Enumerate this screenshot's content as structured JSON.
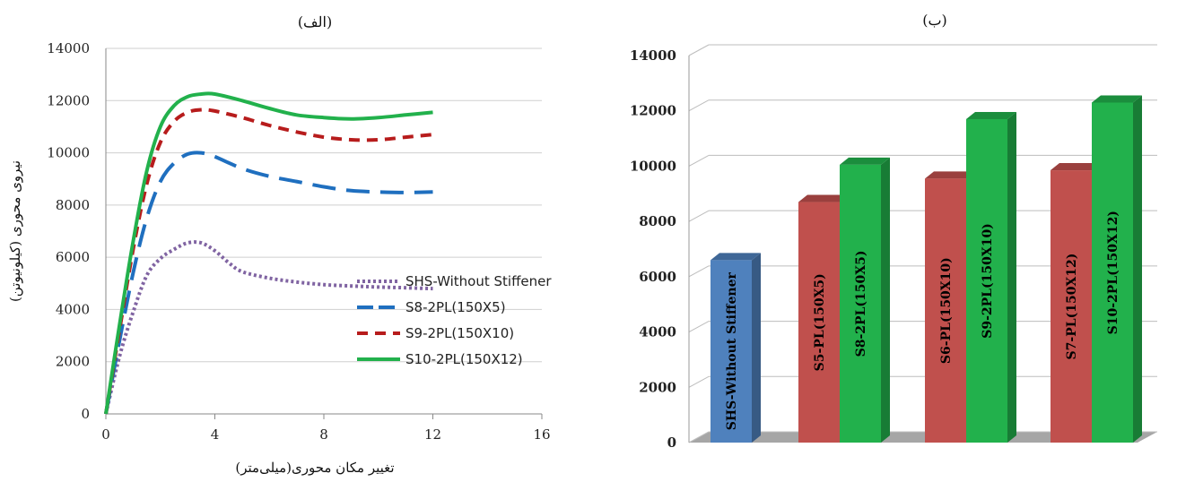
{
  "chart_data": [
    {
      "type": "line",
      "title": "(الف)",
      "xlabel": "تغییر مکان محوری(میلی‌متر)",
      "ylabel": "نیروی محوری (کیلونیوتن)",
      "xlim": [
        0,
        16
      ],
      "ylim": [
        0,
        14000
      ],
      "xticks": [
        "0",
        "4",
        "8",
        "12",
        "16"
      ],
      "yticks": [
        "0",
        "2000",
        "4000",
        "6000",
        "8000",
        "10000",
        "12000",
        "14000"
      ],
      "grid": "horizontal",
      "legend": "right",
      "series": [
        {
          "name": "SHS-Without Stiffener",
          "color": "#8064a2",
          "style": "dotted-thick",
          "points": [
            [
              0,
              0
            ],
            [
              0.5,
              2200
            ],
            [
              1,
              3900
            ],
            [
              1.5,
              5300
            ],
            [
              2,
              5950
            ],
            [
              2.5,
              6300
            ],
            [
              3,
              6550
            ],
            [
              3.5,
              6550
            ],
            [
              4,
              6250
            ],
            [
              4.5,
              5800
            ],
            [
              5,
              5450
            ],
            [
              6,
              5200
            ],
            [
              7,
              5050
            ],
            [
              8,
              4950
            ],
            [
              9,
              4900
            ],
            [
              10,
              4860
            ],
            [
              11,
              4830
            ],
            [
              12,
              4800
            ]
          ]
        },
        {
          "name": "S8-2PL(150X5)",
          "color": "#1f6fbf",
          "style": "long-dash",
          "points": [
            [
              0,
              0
            ],
            [
              0.5,
              2800
            ],
            [
              1,
              5400
            ],
            [
              1.5,
              7500
            ],
            [
              2,
              8900
            ],
            [
              2.5,
              9600
            ],
            [
              3,
              9950
            ],
            [
              3.5,
              10000
            ],
            [
              4,
              9850
            ],
            [
              5,
              9400
            ],
            [
              6,
              9100
            ],
            [
              7,
              8900
            ],
            [
              8,
              8700
            ],
            [
              9,
              8550
            ],
            [
              10,
              8500
            ],
            [
              11,
              8480
            ],
            [
              12,
              8500
            ]
          ]
        },
        {
          "name": "S9-2PL(150X10)",
          "color": "#b71c1c",
          "style": "dash",
          "points": [
            [
              0,
              0
            ],
            [
              0.5,
              3200
            ],
            [
              1,
              6300
            ],
            [
              1.5,
              8800
            ],
            [
              2,
              10400
            ],
            [
              2.5,
              11200
            ],
            [
              3,
              11550
            ],
            [
              3.5,
              11650
            ],
            [
              4,
              11600
            ],
            [
              5,
              11350
            ],
            [
              6,
              11050
            ],
            [
              7,
              10800
            ],
            [
              8,
              10600
            ],
            [
              9,
              10500
            ],
            [
              10,
              10500
            ],
            [
              11,
              10600
            ],
            [
              12,
              10700
            ]
          ]
        },
        {
          "name": "S10-2PL(150X12)",
          "color": "#22b14c",
          "style": "solid",
          "points": [
            [
              0,
              0
            ],
            [
              0.5,
              3400
            ],
            [
              1,
              6600
            ],
            [
              1.5,
              9300
            ],
            [
              2,
              11000
            ],
            [
              2.5,
              11800
            ],
            [
              3,
              12150
            ],
            [
              3.5,
              12250
            ],
            [
              4,
              12250
            ],
            [
              5,
              12000
            ],
            [
              6,
              11700
            ],
            [
              7,
              11450
            ],
            [
              8,
              11350
            ],
            [
              9,
              11300
            ],
            [
              10,
              11350
            ],
            [
              11,
              11450
            ],
            [
              12,
              11550
            ]
          ]
        }
      ]
    },
    {
      "type": "bar",
      "title": "(ب)",
      "ylim": [
        0,
        14000
      ],
      "yticks": [
        "0",
        "2000",
        "4000",
        "6000",
        "8000",
        "10000",
        "12000",
        "14000"
      ],
      "grid": "horizontal",
      "style": "3d",
      "groups": [
        {
          "bars": [
            {
              "label": "SHS-Without Stiffener",
              "value": 6600,
              "color": "#4f81bd",
              "text_color": "#000000"
            }
          ]
        },
        {
          "bars": [
            {
              "label": "S5-PL(150X5)",
              "value": 8700,
              "color": "#c0504d",
              "text_color": "#000000"
            },
            {
              "label": "S8-2PL(150X5)",
              "value": 10050,
              "color": "#22b14c",
              "text_color": "#000000"
            }
          ]
        },
        {
          "bars": [
            {
              "label": "S6-PL(150X10)",
              "value": 9550,
              "color": "#c0504d",
              "text_color": "#000000"
            },
            {
              "label": "S9-2PL(150X10)",
              "value": 11700,
              "color": "#22b14c",
              "text_color": "#000000"
            }
          ]
        },
        {
          "bars": [
            {
              "label": "S7-PL(150X12)",
              "value": 9850,
              "color": "#c0504d",
              "text_color": "#000000"
            },
            {
              "label": "S10-2PL(150X12)",
              "value": 12300,
              "color": "#22b14c",
              "text_color": "#000000"
            }
          ]
        }
      ]
    }
  ]
}
